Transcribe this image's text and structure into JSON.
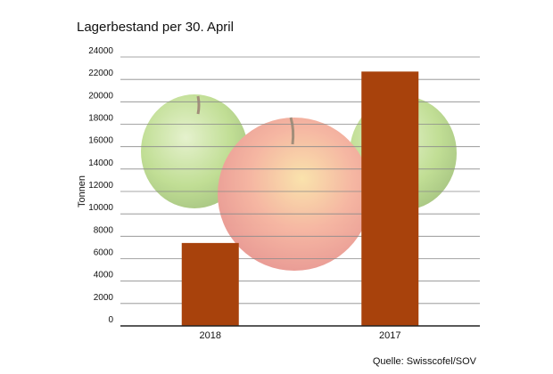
{
  "chart_data": {
    "type": "bar",
    "title": "Lagerbestand per 30. April",
    "ylabel": "Tonnen",
    "xlabel": "",
    "categories": [
      "2018",
      "2017"
    ],
    "values": [
      7400,
      22700
    ],
    "ylim": [
      0,
      24000
    ],
    "yticks": [
      0,
      2000,
      4000,
      6000,
      8000,
      10000,
      12000,
      14000,
      16000,
      18000,
      20000,
      22000,
      24000
    ],
    "grid": true,
    "bar_color": "#a8420c",
    "background_image": "apples"
  },
  "source": "Quelle: Swisscofel/SOV"
}
